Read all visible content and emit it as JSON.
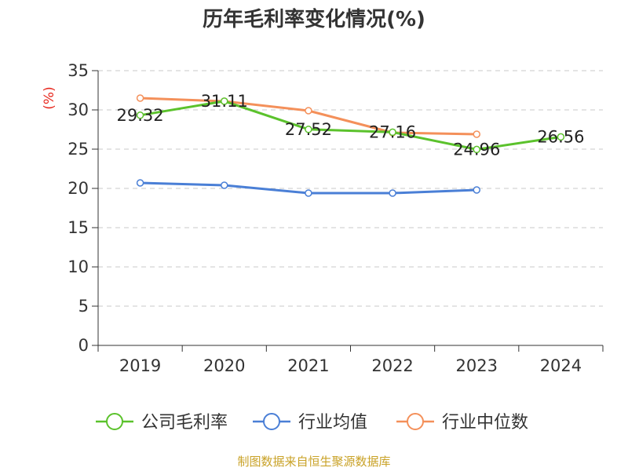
{
  "chart_data": {
    "type": "line",
    "title": "历年毛利率变化情况(%)",
    "ylabel": "(%)",
    "xlabel": "",
    "categories": [
      "2019",
      "2020",
      "2021",
      "2022",
      "2023",
      "2024"
    ],
    "ylim": [
      0,
      35
    ],
    "yticks": [
      0,
      5,
      10,
      15,
      20,
      25,
      30,
      35
    ],
    "grid": true,
    "legend_position": "bottom",
    "series": [
      {
        "name": "公司毛利率",
        "color": "#5bc22c",
        "values": [
          29.32,
          31.11,
          27.52,
          27.16,
          24.96,
          26.56
        ],
        "labels": [
          "29.32",
          "31.11",
          "27.52",
          "27.16",
          "24.96",
          "26.56"
        ]
      },
      {
        "name": "行业均值",
        "color": "#4a7fd6",
        "values": [
          20.7,
          20.4,
          19.4,
          19.4,
          19.8,
          null
        ]
      },
      {
        "name": "行业中位数",
        "color": "#f4905a",
        "values": [
          31.5,
          31.1,
          29.9,
          27.1,
          26.9,
          null
        ]
      }
    ]
  },
  "footer": {
    "source": "制图数据来自恒生聚源数据库"
  }
}
